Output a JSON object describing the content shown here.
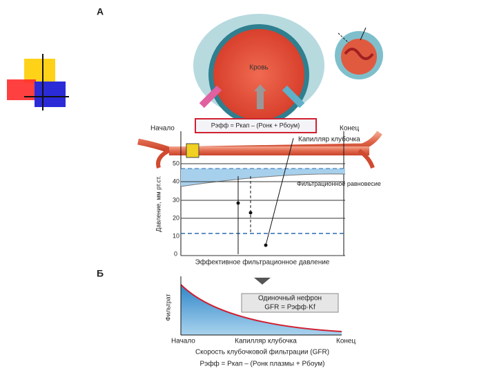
{
  "panel_a": {
    "label": "А",
    "blood": "Кровь",
    "start": "Начало",
    "end": "Конец",
    "formula": "Pэфф = Pкап – (Pонк + Pбоум)",
    "capillary": "Капилляр клубочка",
    "y_axis_label": "Давление, мм рт.ст.",
    "y_ticks": [
      "50",
      "40",
      "30",
      "20",
      "10",
      "0"
    ],
    "equilibrium": "Фильтрационное равновесие",
    "x_axis_label": "Эффективное фильтрационное давление"
  },
  "panel_b": {
    "label": "Б",
    "y_axis_label": "Фильтрат",
    "box_title": "Одиночный нефрон",
    "box_formula": "GFR = Pэфф·Kf",
    "start": "Начало",
    "middle": "Капилляр клубочка",
    "end": "Конец",
    "x_axis_label": "Скорость клубочковой фильтрации (GFR)",
    "formula": "Pэфф = Pкап – (Pонк плазмы + Pбоум)"
  }
}
